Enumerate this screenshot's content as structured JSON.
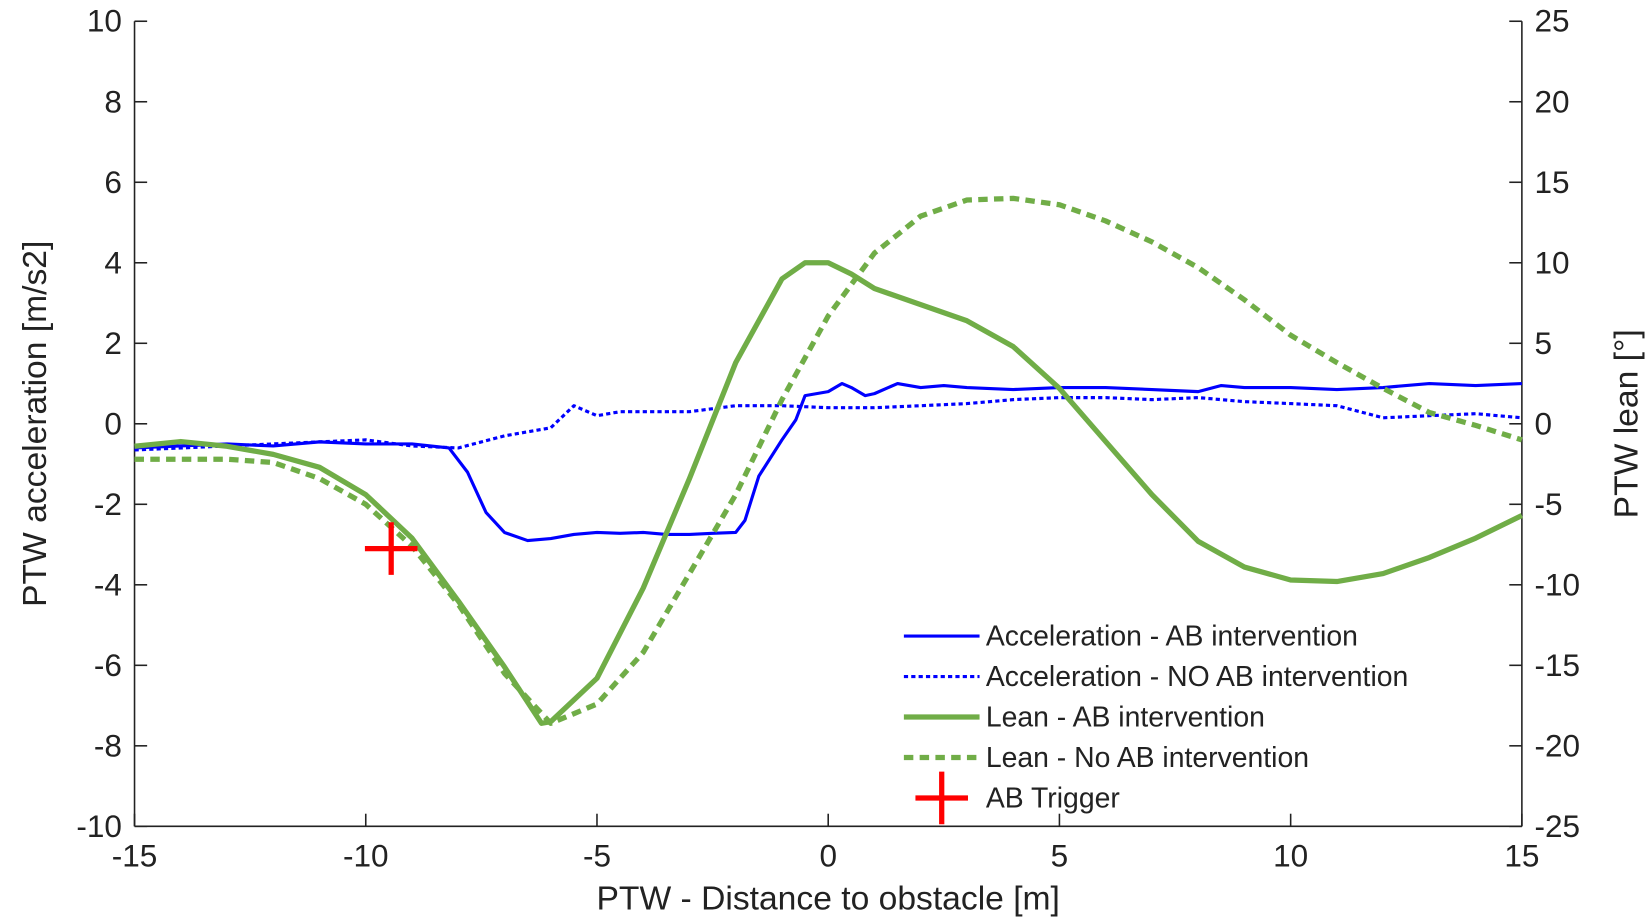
{
  "chart_data": {
    "type": "line",
    "xlabel": "PTW - Distance to obstacle [m]",
    "ylabel": "PTW acceleration [m/s2]",
    "y2label": "PTW lean [°]",
    "xlim": [
      -15,
      15
    ],
    "xticks": [
      -15,
      -10,
      -5,
      0,
      5,
      10,
      15
    ],
    "ylim": [
      -10,
      10
    ],
    "yticks": [
      -10,
      -8,
      -6,
      -4,
      -2,
      0,
      2,
      4,
      6,
      8,
      10
    ],
    "y2lim": [
      -25,
      25
    ],
    "y2ticks": [
      -25,
      -20,
      -15,
      -10,
      -5,
      0,
      5,
      10,
      15,
      20,
      25
    ],
    "legend": "lower right",
    "series": [
      {
        "name": "Acceleration - AB intervention",
        "color": "#0000ff",
        "style": "solid",
        "width": 3,
        "x": [
          -15,
          -14,
          -13,
          -12,
          -11,
          -10,
          -9,
          -8.2,
          -7.8,
          -7.4,
          -7,
          -6.5,
          -6,
          -5.5,
          -5,
          -4.5,
          -4,
          -3.5,
          -3,
          -2.5,
          -2,
          -1.8,
          -1.5,
          -1,
          -0.7,
          -0.5,
          0,
          0.3,
          0.5,
          0.8,
          1,
          1.5,
          2,
          2.5,
          3,
          4,
          5,
          6,
          7,
          8,
          8.5,
          9,
          10,
          11,
          12,
          13,
          14,
          15
        ],
        "values": [
          -0.6,
          -0.55,
          -0.5,
          -0.55,
          -0.45,
          -0.5,
          -0.5,
          -0.6,
          -1.2,
          -2.2,
          -2.7,
          -2.9,
          -2.85,
          -2.75,
          -2.7,
          -2.72,
          -2.7,
          -2.75,
          -2.75,
          -2.72,
          -2.7,
          -2.4,
          -1.3,
          -0.4,
          0.1,
          0.7,
          0.8,
          1.0,
          0.9,
          0.7,
          0.75,
          1.0,
          0.9,
          0.95,
          0.9,
          0.85,
          0.9,
          0.9,
          0.85,
          0.8,
          0.95,
          0.9,
          0.9,
          0.85,
          0.9,
          1.0,
          0.95,
          1.0
        ]
      },
      {
        "name": "Acceleration - NO AB intervention",
        "color": "#0000ff",
        "style": "dotted",
        "width": 3,
        "x": [
          -15,
          -13,
          -11,
          -10,
          -9,
          -8,
          -7,
          -6,
          -5.5,
          -5,
          -4.5,
          -4,
          -3,
          -2,
          -1,
          0,
          1,
          2,
          3,
          4,
          5,
          6,
          7,
          8,
          9,
          10,
          11,
          12,
          13,
          14,
          15
        ],
        "values": [
          -0.65,
          -0.55,
          -0.45,
          -0.4,
          -0.55,
          -0.6,
          -0.3,
          -0.1,
          0.45,
          0.2,
          0.3,
          0.3,
          0.3,
          0.45,
          0.45,
          0.4,
          0.4,
          0.45,
          0.5,
          0.6,
          0.65,
          0.65,
          0.6,
          0.65,
          0.55,
          0.5,
          0.45,
          0.15,
          0.2,
          0.25,
          0.15
        ]
      },
      {
        "name": "Lean - AB intervention",
        "color": "#70ad47",
        "style": "solid",
        "width": 5,
        "axis": "y2",
        "x": [
          -15,
          -14,
          -13,
          -12,
          -11,
          -10,
          -9,
          -8,
          -7,
          -6.2,
          -6,
          -5,
          -4,
          -3,
          -2,
          -1,
          -0.5,
          0,
          0.5,
          1,
          2,
          3,
          4,
          5,
          6,
          7,
          8,
          9,
          10,
          11,
          12,
          13,
          14,
          15
        ],
        "values": [
          -1.4,
          -1.1,
          -1.4,
          -1.9,
          -2.7,
          -4.4,
          -7.1,
          -11,
          -15.1,
          -18.6,
          -18.5,
          -15.8,
          -10.2,
          -3.4,
          3.8,
          9,
          10,
          10,
          9.3,
          8.4,
          7.4,
          6.4,
          4.8,
          2.2,
          -1.1,
          -4.4,
          -7.3,
          -8.9,
          -9.7,
          -9.8,
          -9.3,
          -8.3,
          -7.1,
          -5.7
        ]
      },
      {
        "name": "Lean - No AB intervention",
        "color": "#70ad47",
        "style": "dotted",
        "width": 5,
        "axis": "y2",
        "x": [
          -15,
          -13,
          -12,
          -11,
          -10,
          -9,
          -8,
          -7,
          -6,
          -5,
          -4,
          -3,
          -2,
          -1,
          0,
          1,
          2,
          3,
          4,
          5,
          6,
          7,
          8,
          9,
          10,
          11,
          12,
          13,
          14,
          15
        ],
        "values": [
          -2.2,
          -2.2,
          -2.4,
          -3.4,
          -5,
          -7.6,
          -11.2,
          -15.5,
          -18.6,
          -17.4,
          -14.2,
          -9.3,
          -4.4,
          1.5,
          6.7,
          10.6,
          12.9,
          13.9,
          14,
          13.6,
          12.6,
          11.3,
          9.7,
          7.7,
          5.5,
          3.8,
          2.2,
          0.7,
          -0.1,
          -1
        ]
      },
      {
        "name": "AB Trigger",
        "color": "#ff0000",
        "style": "marker",
        "width": 5,
        "x": [
          -9.45
        ],
        "values": [
          -3.1
        ]
      }
    ]
  }
}
